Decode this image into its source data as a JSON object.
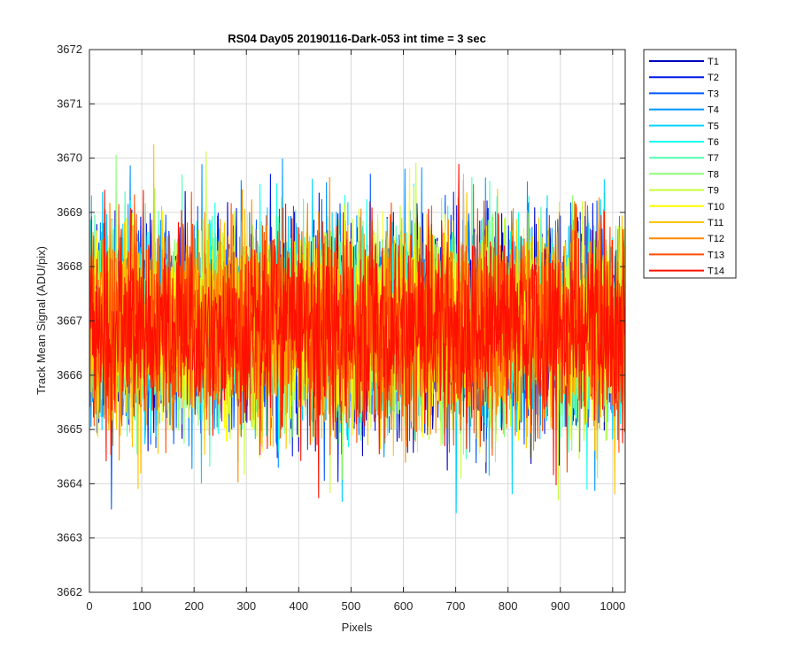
{
  "chart_data": {
    "type": "line",
    "title": "RS04 Day05 20190116-Dark-053 int time = 3 sec",
    "xlabel": "Pixels",
    "ylabel": "Track Mean Signal (ADU/pix)",
    "xlim": [
      0,
      1024
    ],
    "ylim": [
      3662,
      3672
    ],
    "xticks": [
      0,
      100,
      200,
      300,
      400,
      500,
      600,
      700,
      800,
      900,
      1000
    ],
    "yticks": [
      3662,
      3663,
      3664,
      3665,
      3666,
      3667,
      3668,
      3669,
      3670,
      3671,
      3672
    ],
    "grid": true,
    "legend_position": "outside-top-right",
    "series": [
      {
        "name": "T1",
        "color": "#0000bf",
        "mean": 3666.9,
        "sd": 0.9
      },
      {
        "name": "T2",
        "color": "#0019e6",
        "mean": 3666.9,
        "sd": 0.9
      },
      {
        "name": "T3",
        "color": "#0059ff",
        "mean": 3666.9,
        "sd": 0.9
      },
      {
        "name": "T4",
        "color": "#0096ff",
        "mean": 3666.9,
        "sd": 0.9
      },
      {
        "name": "T5",
        "color": "#00d2ff",
        "mean": 3666.9,
        "sd": 0.9
      },
      {
        "name": "T6",
        "color": "#10fff0",
        "mean": 3666.9,
        "sd": 0.9
      },
      {
        "name": "T7",
        "color": "#50ffb0",
        "mean": 3666.9,
        "sd": 0.9
      },
      {
        "name": "T8",
        "color": "#8cff74",
        "mean": 3666.9,
        "sd": 0.9
      },
      {
        "name": "T9",
        "color": "#c8ff38",
        "mean": 3666.9,
        "sd": 0.9
      },
      {
        "name": "T10",
        "color": "#ffff00",
        "mean": 3666.9,
        "sd": 0.9
      },
      {
        "name": "T11",
        "color": "#ffc400",
        "mean": 3666.9,
        "sd": 0.9
      },
      {
        "name": "T12",
        "color": "#ff8800",
        "mean": 3666.9,
        "sd": 0.9
      },
      {
        "name": "T13",
        "color": "#ff4c00",
        "mean": 3666.9,
        "sd": 0.9
      },
      {
        "name": "T14",
        "color": "#ff1000",
        "mean": 3666.9,
        "sd": 0.9
      }
    ]
  }
}
